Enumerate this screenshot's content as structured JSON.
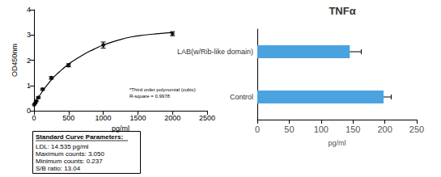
{
  "chart_data": [
    {
      "type": "scatter",
      "xlabel": "pg/ml",
      "ylabel": "OD450nm",
      "xlim": [
        0,
        2500
      ],
      "xticks": [
        0,
        500,
        1000,
        1500,
        2000,
        2500
      ],
      "ylim": [
        0,
        4
      ],
      "yticks": [
        0,
        1,
        2,
        3,
        4
      ],
      "grid": false,
      "annotations": [
        "*Third order polynomial (cubic)",
        "R-square = 0.9978"
      ],
      "parameters": {
        "title": "Standard Curve Parameters:",
        "lines": [
          "LDL: 14.535 pg/ml",
          "Maximum counts: 3.050",
          "Minimum counts: 0.237",
          "S/B ratio: 13.04"
        ]
      },
      "series": [
        {
          "type": "scatter",
          "marker": "circle",
          "color": "#000000",
          "x": [
            0,
            15.625,
            31.25,
            62.5,
            125,
            250,
            500,
            1000,
            2000
          ],
          "values": [
            0.24,
            0.3,
            0.38,
            0.52,
            0.85,
            1.3,
            1.8,
            2.6,
            3.05
          ],
          "errors": [
            0.02,
            0.02,
            0.02,
            0.03,
            0.04,
            0.05,
            0.06,
            0.12,
            0.08
          ]
        },
        {
          "type": "line",
          "line_style": "solid",
          "color": "#000000",
          "x": [
            0,
            100,
            200,
            300,
            400,
            500,
            600,
            700,
            800,
            900,
            1000,
            1200,
            1400,
            1600,
            1800,
            2000
          ],
          "values": [
            0.24,
            0.68,
            1.05,
            1.37,
            1.62,
            1.85,
            2.03,
            2.2,
            2.35,
            2.48,
            2.6,
            2.78,
            2.92,
            3.0,
            3.05,
            3.1
          ]
        }
      ]
    },
    {
      "type": "bar",
      "title": "TNFα",
      "orientation": "horizontal",
      "categories": [
        "Control",
        "LAB(w/Rib-like domain)"
      ],
      "values": [
        198,
        145
      ],
      "errors": [
        12,
        18
      ],
      "color": "#4aa3df",
      "xlabel": "pg/ml",
      "xlim": [
        0,
        250
      ],
      "xticks": [
        0,
        50,
        100,
        150,
        200,
        250
      ],
      "grid": false
    }
  ]
}
